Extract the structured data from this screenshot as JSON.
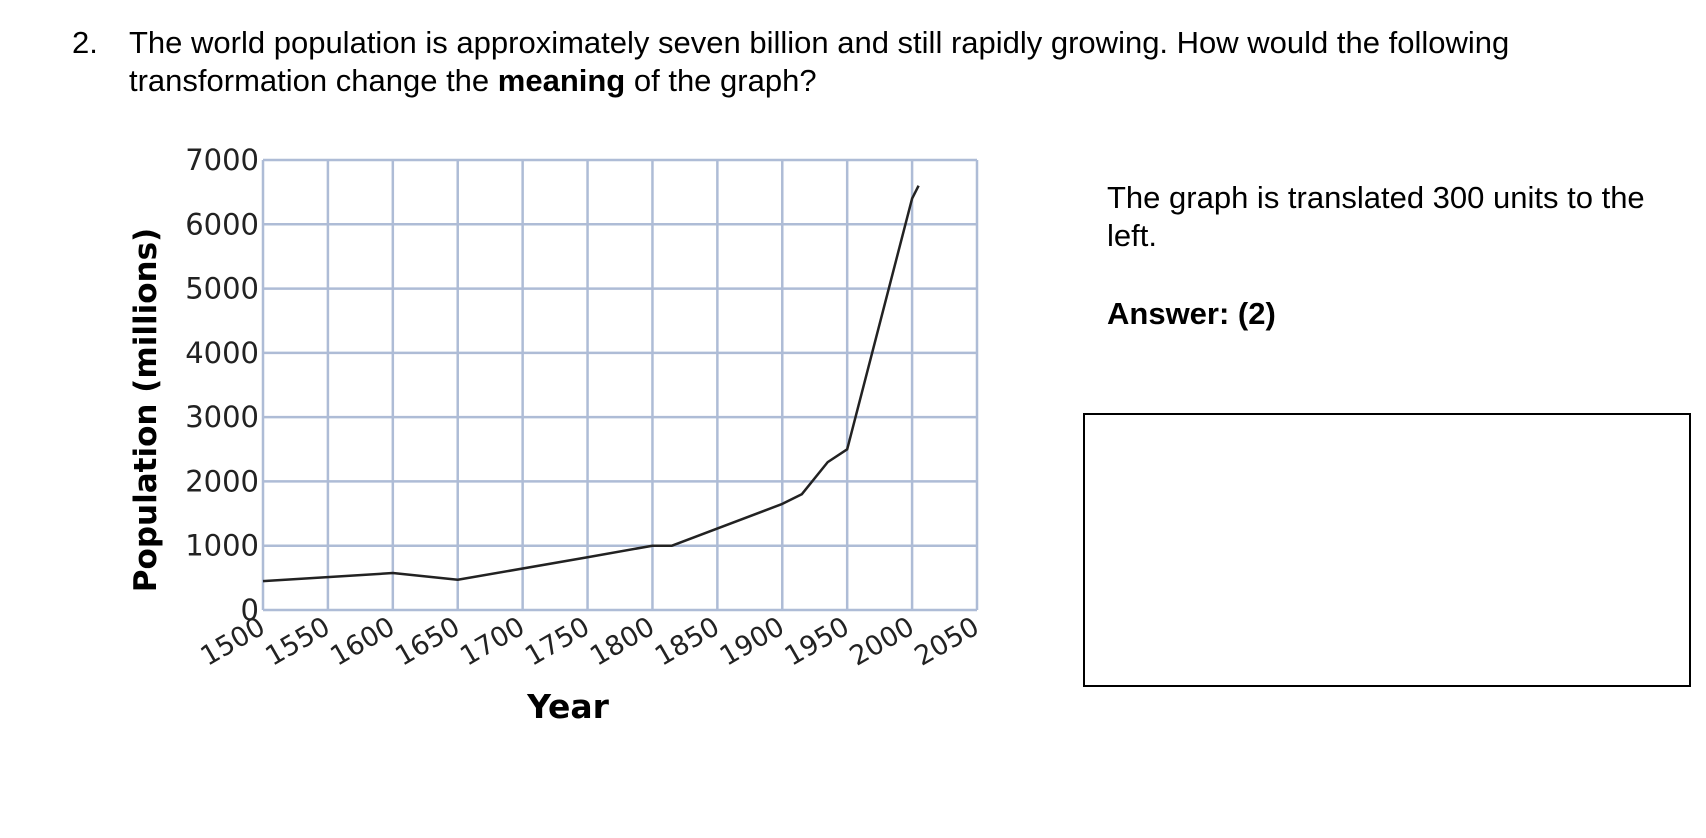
{
  "question": {
    "number": "2.",
    "text_before": "The world population is approximately seven billion and still rapidly growing. How would the following transformation change the ",
    "text_bold": "meaning",
    "text_after": " of the graph?"
  },
  "prompt": "The graph is translated 300 units to the left.",
  "answer": "Answer: (2)",
  "answer_box": "",
  "chart_data": {
    "type": "line",
    "title": "",
    "xlabel": "Year",
    "ylabel": "Population (millions)",
    "xlim": [
      1500,
      2050
    ],
    "ylim": [
      0,
      7000
    ],
    "grid": true,
    "x_ticks": [
      1500,
      1550,
      1600,
      1650,
      1700,
      1750,
      1800,
      1850,
      1900,
      1950,
      2000,
      2050
    ],
    "y_ticks": [
      0,
      1000,
      2000,
      3000,
      4000,
      5000,
      6000,
      7000
    ],
    "series": [
      {
        "name": "",
        "x": [
          1500,
          1600,
          1650,
          1750,
          1800,
          1815,
          1900,
          1915,
          1935,
          1950,
          2000,
          2005
        ],
        "y": [
          450,
          575,
          470,
          820,
          1000,
          1000,
          1650,
          1800,
          2300,
          2500,
          6400,
          6600
        ],
        "color": "#222222"
      }
    ],
    "grid_color": "#aebcd6"
  }
}
